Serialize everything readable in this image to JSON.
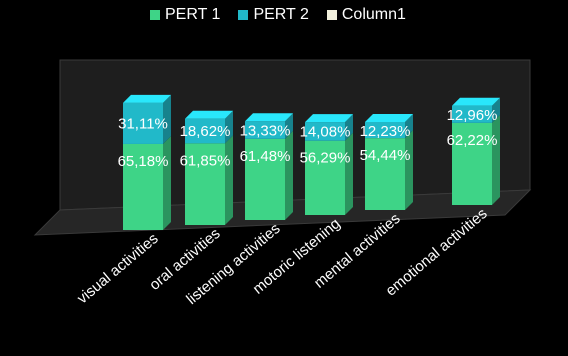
{
  "chart_data": {
    "type": "bar",
    "stacked": true,
    "categories": [
      "visual activities",
      "oral activities",
      "listening activities",
      "motoric listening",
      "mental activities",
      "emotional activities"
    ],
    "series": [
      {
        "name": "PERT 1",
        "values": [
          65.18,
          61.85,
          61.48,
          56.29,
          54.44,
          62.22
        ],
        "labels": [
          "65,18%",
          "61,85%",
          "61,48%",
          "56,29%",
          "54,44%",
          "62,22%"
        ],
        "color": "#3ed487"
      },
      {
        "name": "PERT 2",
        "values": [
          31.11,
          18.62,
          13.33,
          14.08,
          12.23,
          12.96
        ],
        "labels": [
          "31,11%",
          "18,62%",
          "13,33%",
          "14,08%",
          "12,23%",
          "12,96%"
        ],
        "color": "#21b9c9"
      },
      {
        "name": "Column1",
        "values": [
          0,
          0,
          0,
          0,
          0,
          0
        ],
        "labels": [],
        "color": "#f2f0dd"
      }
    ],
    "legend_position": "top",
    "background": "#000000",
    "style": "3d-columns"
  }
}
